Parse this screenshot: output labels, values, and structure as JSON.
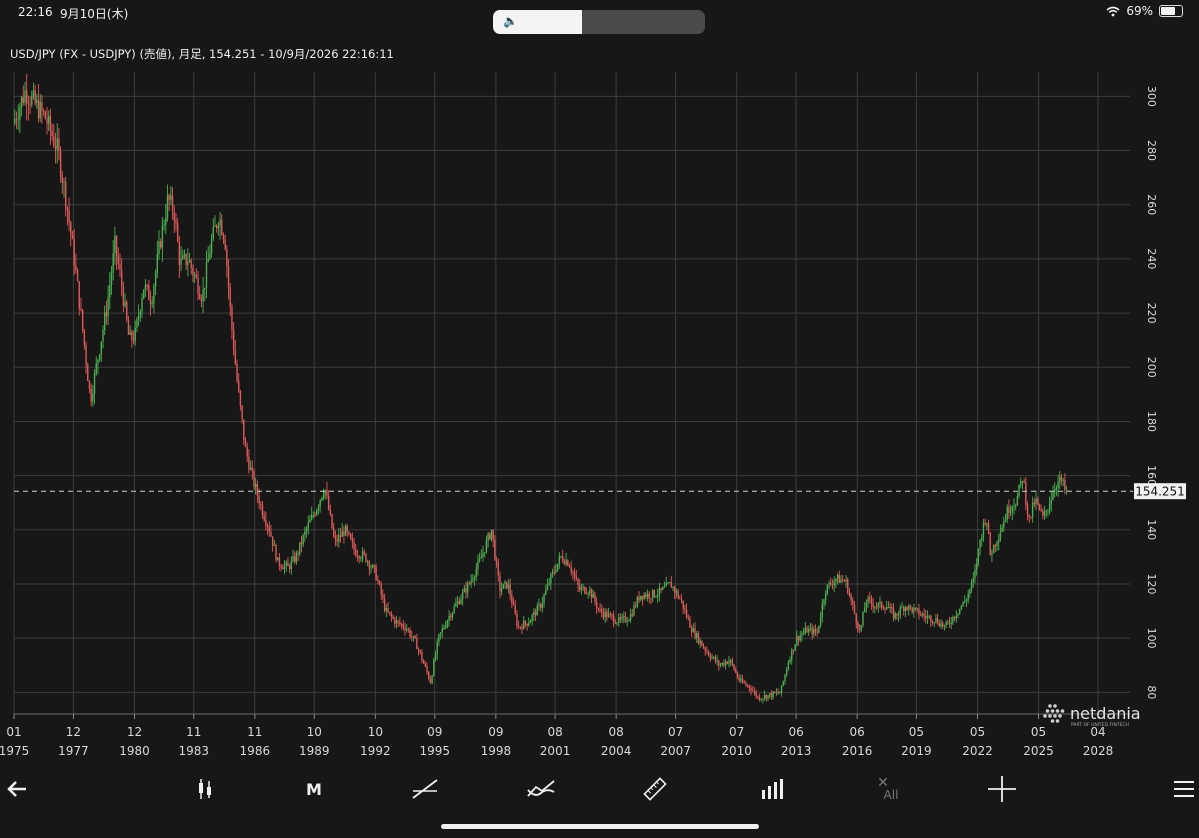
{
  "status": {
    "time": "22:16",
    "date": "9月10日(木)",
    "battery": "69%",
    "battery_level": 0.69,
    "volume_level": 0.42
  },
  "title": "USD/JPY (FX - USDJPY) (売値), 月足, 154.251 - 10/9月/2026 22:16:11",
  "colors": {
    "background": "#171717",
    "grid": "#3c3c3c",
    "up": "#4caf50",
    "down": "#e05a5a",
    "text": "#d9d9d9"
  },
  "chart_data": {
    "type": "candlestick",
    "title": "USD/JPY (FX - USDJPY) (売値), 月足, 154.251 - 10/9月/2026 22:16:11",
    "interval": "月足",
    "last_price": 154.251,
    "last_price_label": "154.251",
    "y_ticks": [
      80,
      100,
      120,
      140,
      160,
      180,
      200,
      220,
      240,
      260,
      280,
      300
    ],
    "ylim": [
      72,
      309
    ],
    "x_ticks": [
      {
        "t": 1975.0,
        "month": "01",
        "year": "1975"
      },
      {
        "t": 1977.92,
        "month": "12",
        "year": "1977"
      },
      {
        "t": 1980.92,
        "month": "12",
        "year": "1980"
      },
      {
        "t": 1983.83,
        "month": "11",
        "year": "1983"
      },
      {
        "t": 1986.83,
        "month": "11",
        "year": "1986"
      },
      {
        "t": 1989.75,
        "month": "10",
        "year": "1989"
      },
      {
        "t": 1992.75,
        "month": "10",
        "year": "1992"
      },
      {
        "t": 1995.67,
        "month": "09",
        "year": "1995"
      },
      {
        "t": 1998.67,
        "month": "09",
        "year": "1998"
      },
      {
        "t": 2001.58,
        "month": "08",
        "year": "2001"
      },
      {
        "t": 2004.58,
        "month": "08",
        "year": "2004"
      },
      {
        "t": 2007.5,
        "month": "07",
        "year": "2007"
      },
      {
        "t": 2010.5,
        "month": "07",
        "year": "2010"
      },
      {
        "t": 2013.42,
        "month": "06",
        "year": "2013"
      },
      {
        "t": 2016.42,
        "month": "06",
        "year": "2016"
      },
      {
        "t": 2019.33,
        "month": "05",
        "year": "2019"
      },
      {
        "t": 2022.33,
        "month": "05",
        "year": "2022"
      },
      {
        "t": 2025.33,
        "month": "05",
        "year": "2025"
      },
      {
        "t": 2028.25,
        "month": "04",
        "year": "2028"
      }
    ],
    "xlim": [
      1975.0,
      2028.25
    ],
    "price_path": [
      [
        1975.0,
        290
      ],
      [
        1975.6,
        302
      ],
      [
        1976.2,
        296
      ],
      [
        1976.6,
        292
      ],
      [
        1977.2,
        280
      ],
      [
        1977.6,
        262
      ],
      [
        1978.0,
        240
      ],
      [
        1978.4,
        215
      ],
      [
        1978.8,
        188
      ],
      [
        1979.2,
        205
      ],
      [
        1979.6,
        222
      ],
      [
        1980.0,
        245
      ],
      [
        1980.3,
        232
      ],
      [
        1980.7,
        210
      ],
      [
        1981.0,
        212
      ],
      [
        1981.4,
        230
      ],
      [
        1981.8,
        225
      ],
      [
        1982.2,
        245
      ],
      [
        1982.6,
        262
      ],
      [
        1982.9,
        258
      ],
      [
        1983.2,
        238
      ],
      [
        1983.6,
        240
      ],
      [
        1984.0,
        232
      ],
      [
        1984.3,
        226
      ],
      [
        1984.7,
        245
      ],
      [
        1985.1,
        256
      ],
      [
        1985.4,
        248
      ],
      [
        1985.7,
        218
      ],
      [
        1986.0,
        195
      ],
      [
        1986.4,
        170
      ],
      [
        1986.8,
        158
      ],
      [
        1987.2,
        148
      ],
      [
        1987.6,
        140
      ],
      [
        1988.0,
        128
      ],
      [
        1988.5,
        126
      ],
      [
        1988.9,
        130
      ],
      [
        1989.4,
        140
      ],
      [
        1989.9,
        148
      ],
      [
        1990.3,
        156
      ],
      [
        1990.8,
        135
      ],
      [
        1991.3,
        140
      ],
      [
        1991.8,
        132
      ],
      [
        1992.3,
        130
      ],
      [
        1992.8,
        124
      ],
      [
        1993.3,
        110
      ],
      [
        1993.8,
        106
      ],
      [
        1994.3,
        104
      ],
      [
        1994.8,
        98
      ],
      [
        1995.3,
        88
      ],
      [
        1995.5,
        84
      ],
      [
        1995.9,
        100
      ],
      [
        1996.4,
        108
      ],
      [
        1996.9,
        114
      ],
      [
        1997.4,
        120
      ],
      [
        1997.9,
        128
      ],
      [
        1998.5,
        140
      ],
      [
        1998.9,
        118
      ],
      [
        1999.3,
        120
      ],
      [
        1999.8,
        104
      ],
      [
        2000.3,
        106
      ],
      [
        2000.9,
        112
      ],
      [
        2001.4,
        122
      ],
      [
        2001.9,
        130
      ],
      [
        2002.3,
        128
      ],
      [
        2002.8,
        118
      ],
      [
        2003.3,
        118
      ],
      [
        2003.8,
        110
      ],
      [
        2004.3,
        108
      ],
      [
        2004.8,
        106
      ],
      [
        2005.3,
        108
      ],
      [
        2005.8,
        116
      ],
      [
        2006.3,
        116
      ],
      [
        2006.8,
        117
      ],
      [
        2007.3,
        120
      ],
      [
        2007.8,
        114
      ],
      [
        2008.3,
        104
      ],
      [
        2008.8,
        98
      ],
      [
        2009.2,
        94
      ],
      [
        2009.7,
        90
      ],
      [
        2010.2,
        92
      ],
      [
        2010.7,
        84
      ],
      [
        2011.2,
        82
      ],
      [
        2011.6,
        78
      ],
      [
        2012.2,
        79
      ],
      [
        2012.7,
        80
      ],
      [
        2013.1,
        92
      ],
      [
        2013.5,
        100
      ],
      [
        2014.0,
        103
      ],
      [
        2014.5,
        102
      ],
      [
        2014.9,
        118
      ],
      [
        2015.4,
        122
      ],
      [
        2015.9,
        121
      ],
      [
        2016.3,
        110
      ],
      [
        2016.6,
        102
      ],
      [
        2016.9,
        114
      ],
      [
        2017.4,
        112
      ],
      [
        2017.9,
        112
      ],
      [
        2018.3,
        108
      ],
      [
        2018.8,
        112
      ],
      [
        2019.3,
        110
      ],
      [
        2019.8,
        108
      ],
      [
        2020.3,
        107
      ],
      [
        2020.8,
        104
      ],
      [
        2021.3,
        109
      ],
      [
        2021.8,
        114
      ],
      [
        2022.2,
        122
      ],
      [
        2022.5,
        136
      ],
      [
        2022.8,
        146
      ],
      [
        2023.0,
        131
      ],
      [
        2023.4,
        138
      ],
      [
        2023.9,
        148
      ],
      [
        2024.3,
        151
      ],
      [
        2024.6,
        160
      ],
      [
        2024.9,
        143
      ],
      [
        2025.2,
        151
      ],
      [
        2025.6,
        144
      ],
      [
        2025.9,
        150
      ],
      [
        2026.2,
        157
      ],
      [
        2026.5,
        158
      ],
      [
        2026.69,
        154.25
      ]
    ]
  },
  "logo": {
    "name": "netdania",
    "tagline": "PART OF UNITED FINTECH"
  },
  "toolbar": {
    "items": [
      {
        "name": "back-button",
        "icon": "arrow-left-icon"
      },
      {
        "name": "chart-type-button",
        "icon": "candlestick-icon"
      },
      {
        "name": "interval-button",
        "label": "M"
      },
      {
        "name": "draw-line-button",
        "icon": "trendline-icon"
      },
      {
        "name": "indicator-button",
        "icon": "indicator-icon"
      },
      {
        "name": "measure-button",
        "icon": "ruler-icon"
      },
      {
        "name": "volume-button",
        "icon": "bar-chart-icon"
      },
      {
        "name": "clear-all-button",
        "label": "All"
      },
      {
        "name": "crosshair-button",
        "icon": "crosshair-icon"
      },
      {
        "name": "menu-button",
        "icon": "hamburger-icon"
      }
    ]
  }
}
